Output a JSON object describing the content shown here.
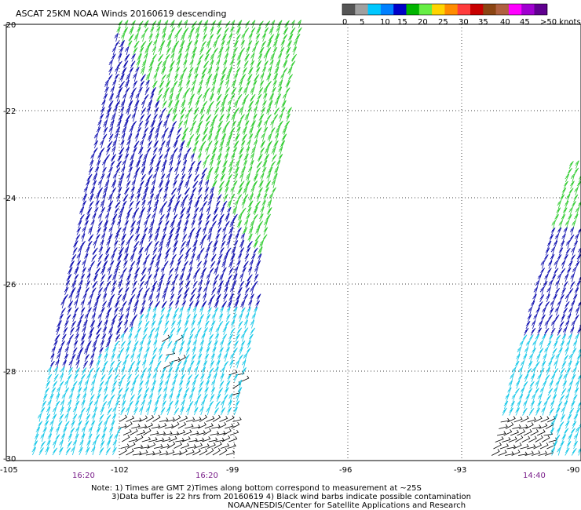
{
  "title": "ASCAT 25KM NOAA Winds 20160619 descending",
  "legend": {
    "colors": [
      "#555555",
      "#a0a0a0",
      "#00c8ff",
      "#0080ff",
      "#0000c8",
      "#00b400",
      "#66ee44",
      "#ffd400",
      "#ff8c00",
      "#ff3c3c",
      "#c80000",
      "#8b4513",
      "#b06040",
      "#ff00ff",
      "#a000d0",
      "#600090"
    ],
    "labels": [
      "0",
      "5",
      "10",
      "15",
      "20",
      "25",
      "30",
      "35",
      "40",
      "45",
      ">50 knots"
    ]
  },
  "axes": {
    "lat_labels": [
      "-20",
      "-22",
      "-24",
      "-26",
      "-28",
      "-30"
    ],
    "lon_labels": [
      "-105",
      "-102",
      "-99",
      "-96",
      "-93",
      "-90"
    ]
  },
  "times": [
    "16:20",
    "16:20",
    "14:40"
  ],
  "notes": [
    "Note: 1) Times are GMT 2)Times along bottom correspond to measurement at ~25S",
    "3)Data buffer is 22 hrs from 20160619 4) Black wind barbs indicate possible contamination",
    "NOAA/NESDIS/Center for Satellite Applications and Research"
  ],
  "colors": {
    "green": "#33cc33",
    "blue": "#1010b0",
    "cyan": "#18c8e8",
    "black": "#000000",
    "time_label": "#7a1f8a"
  }
}
